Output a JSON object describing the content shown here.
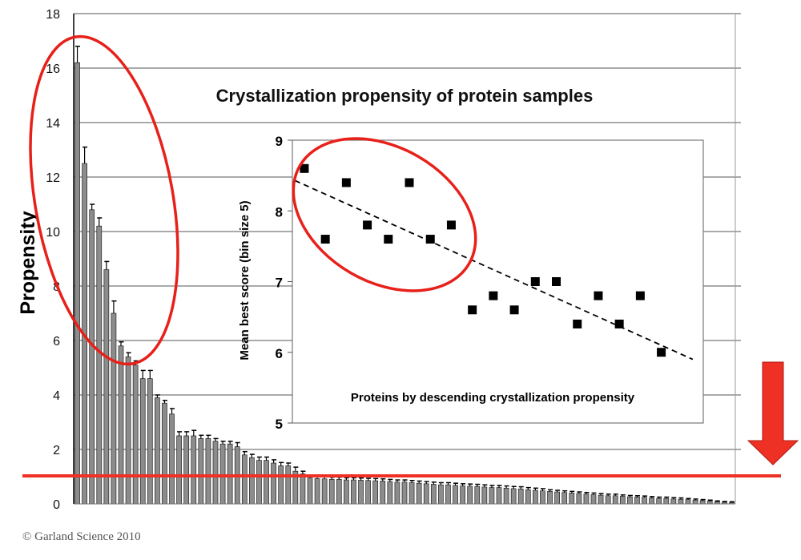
{
  "chart_data": [
    {
      "type": "bar",
      "title": "Crystallization propensity of protein samples",
      "xlabel": "",
      "ylabel": "Propensity",
      "ylim": [
        0,
        18
      ],
      "yticks": [
        0,
        2,
        4,
        6,
        8,
        10,
        12,
        14,
        16,
        18
      ],
      "grid": true,
      "bar_color": "#8c8c8c",
      "values": [
        16.2,
        12.5,
        10.8,
        10.2,
        8.6,
        7.0,
        5.8,
        5.4,
        5.1,
        4.6,
        4.6,
        3.9,
        3.7,
        3.3,
        2.5,
        2.5,
        2.5,
        2.4,
        2.4,
        2.3,
        2.2,
        2.2,
        2.1,
        1.8,
        1.7,
        1.6,
        1.6,
        1.5,
        1.4,
        1.4,
        1.2,
        1.1,
        0.95,
        0.93,
        0.92,
        0.9,
        0.9,
        0.88,
        0.88,
        0.87,
        0.86,
        0.85,
        0.84,
        0.82,
        0.8,
        0.8,
        0.78,
        0.76,
        0.74,
        0.72,
        0.7,
        0.7,
        0.68,
        0.66,
        0.65,
        0.64,
        0.62,
        0.6,
        0.6,
        0.58,
        0.56,
        0.55,
        0.52,
        0.5,
        0.48,
        0.46,
        0.44,
        0.42,
        0.4,
        0.38,
        0.36,
        0.34,
        0.32,
        0.3,
        0.3,
        0.28,
        0.26,
        0.25,
        0.24,
        0.22,
        0.2,
        0.2,
        0.18,
        0.17,
        0.16,
        0.14,
        0.12,
        0.1,
        0.08,
        0.06,
        0.05
      ],
      "errors": [
        0.6,
        0.6,
        0.2,
        0.3,
        0.3,
        0.45,
        0.15,
        0.15,
        0.15,
        0.3,
        0.3,
        0.1,
        0.1,
        0.2,
        0.15,
        0.15,
        0.2,
        0.12,
        0.12,
        0.1,
        0.1,
        0.1,
        0.15,
        0.12,
        0.12,
        0.12,
        0.12,
        0.12,
        0.12,
        0.1,
        0.15,
        0.1,
        0.08,
        0.08,
        0.08,
        0.08,
        0.08,
        0.08,
        0.08,
        0.08,
        0.08,
        0.08,
        0.08,
        0.08,
        0.08,
        0.08,
        0.08,
        0.08,
        0.08,
        0.08,
        0.08,
        0.08,
        0.08,
        0.08,
        0.08,
        0.08,
        0.08,
        0.08,
        0.08,
        0.08,
        0.08,
        0.08,
        0.08,
        0.08,
        0.08,
        0.06,
        0.06,
        0.06,
        0.06,
        0.06,
        0.06,
        0.06,
        0.06,
        0.06,
        0.06,
        0.05,
        0.05,
        0.05,
        0.05,
        0.05,
        0.05,
        0.05,
        0.05,
        0.05,
        0.04,
        0.04,
        0.04,
        0.04,
        0.03,
        0.03,
        0.03
      ],
      "threshold_line": {
        "value": 1.03,
        "color": "#ee3124"
      },
      "annotation_color": "#e8201a"
    },
    {
      "type": "scatter",
      "title": "",
      "xlabel": "Proteins by descending crystallization propensity",
      "ylabel": "Mean best score (bin size 5)",
      "ylim": [
        5,
        9
      ],
      "xlim": [
        0.43,
        20
      ],
      "yticks": [
        5,
        6,
        7,
        8,
        9
      ],
      "x": [
        1,
        2,
        3,
        4,
        5,
        6,
        7,
        8,
        9,
        10,
        11,
        12,
        13,
        14,
        15,
        16,
        17,
        18
      ],
      "y": [
        8.6,
        7.6,
        8.4,
        7.8,
        7.6,
        8.4,
        7.6,
        7.8,
        6.6,
        6.8,
        6.6,
        7.0,
        7.0,
        6.4,
        6.8,
        6.4,
        6.8,
        6.0
      ],
      "trendline": {
        "style": "dashed",
        "x": [
          0.55,
          19.5
        ],
        "y": [
          8.43,
          5.9
        ]
      }
    }
  ],
  "footer": {
    "copyright": "© Garland Science 2010"
  }
}
